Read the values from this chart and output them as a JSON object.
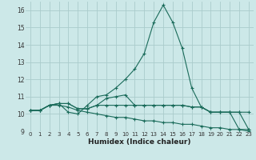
{
  "xlabel": "Humidex (Indice chaleur)",
  "bg_color": "#cce8e8",
  "grid_color": "#aacccc",
  "line_color": "#1a6b5a",
  "xlim": [
    -0.5,
    23.5
  ],
  "ylim": [
    9,
    16.5
  ],
  "yticks": [
    9,
    10,
    11,
    12,
    13,
    14,
    15,
    16
  ],
  "xticks": [
    0,
    1,
    2,
    3,
    4,
    5,
    6,
    7,
    8,
    9,
    10,
    11,
    12,
    13,
    14,
    15,
    16,
    17,
    18,
    19,
    20,
    21,
    22,
    23
  ],
  "series": [
    [
      10.2,
      10.2,
      10.5,
      10.6,
      10.1,
      10.0,
      10.5,
      11.0,
      11.1,
      11.5,
      12.0,
      12.6,
      13.5,
      15.3,
      16.3,
      15.3,
      13.8,
      11.5,
      10.4,
      10.1,
      10.1,
      10.1,
      9.1,
      9.1
    ],
    [
      10.2,
      10.2,
      10.5,
      10.6,
      10.6,
      10.3,
      10.3,
      10.5,
      10.9,
      11.0,
      11.1,
      10.5,
      10.5,
      10.5,
      10.5,
      10.5,
      10.5,
      10.4,
      10.4,
      10.1,
      10.1,
      10.1,
      10.1,
      10.1
    ],
    [
      10.2,
      10.2,
      10.5,
      10.6,
      10.6,
      10.3,
      10.3,
      10.5,
      10.5,
      10.5,
      10.5,
      10.5,
      10.5,
      10.5,
      10.5,
      10.5,
      10.5,
      10.4,
      10.4,
      10.1,
      10.1,
      10.1,
      10.1,
      9.1
    ],
    [
      10.2,
      10.2,
      10.5,
      10.5,
      10.4,
      10.2,
      10.1,
      10.0,
      9.9,
      9.8,
      9.8,
      9.7,
      9.6,
      9.6,
      9.5,
      9.5,
      9.4,
      9.4,
      9.3,
      9.2,
      9.2,
      9.1,
      9.1,
      9.0
    ]
  ]
}
